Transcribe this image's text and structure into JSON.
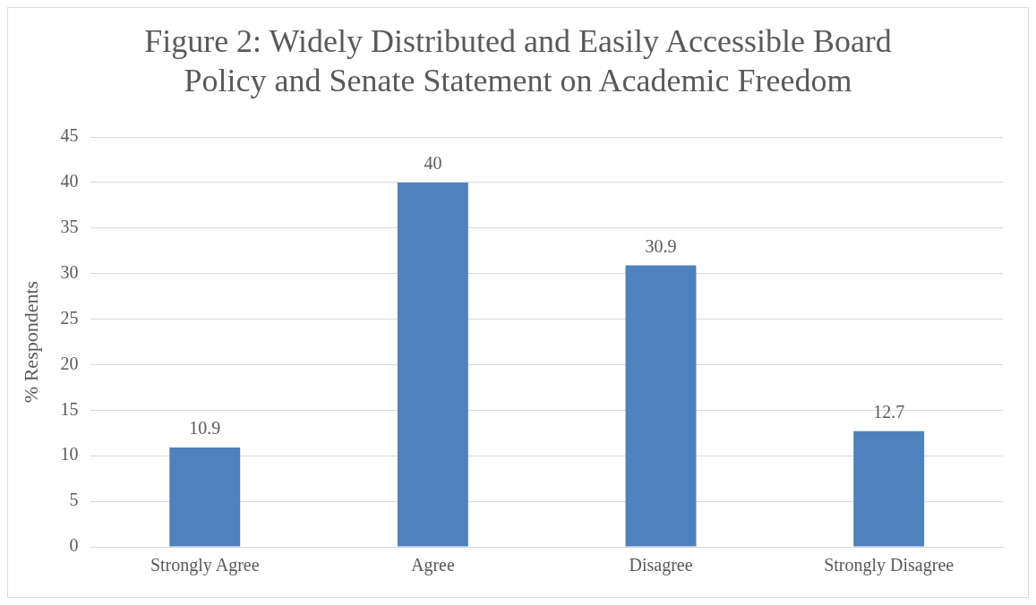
{
  "chart_data": {
    "type": "bar",
    "title": "Figure 2: Widely Distributed and Easily Accessible Board Policy and Senate Statement on Academic Freedom",
    "ylabel": "% Respondents",
    "categories": [
      "Strongly Agree",
      "Agree",
      "Disagree",
      "Strongly Disagree"
    ],
    "values": [
      10.9,
      40,
      30.9,
      12.7
    ],
    "color": "#4f81bd",
    "ylim": [
      0,
      45
    ],
    "yticks": [
      0,
      5,
      10,
      15,
      20,
      25,
      30,
      35,
      40,
      45
    ],
    "grid": "y",
    "data_labels": true
  }
}
